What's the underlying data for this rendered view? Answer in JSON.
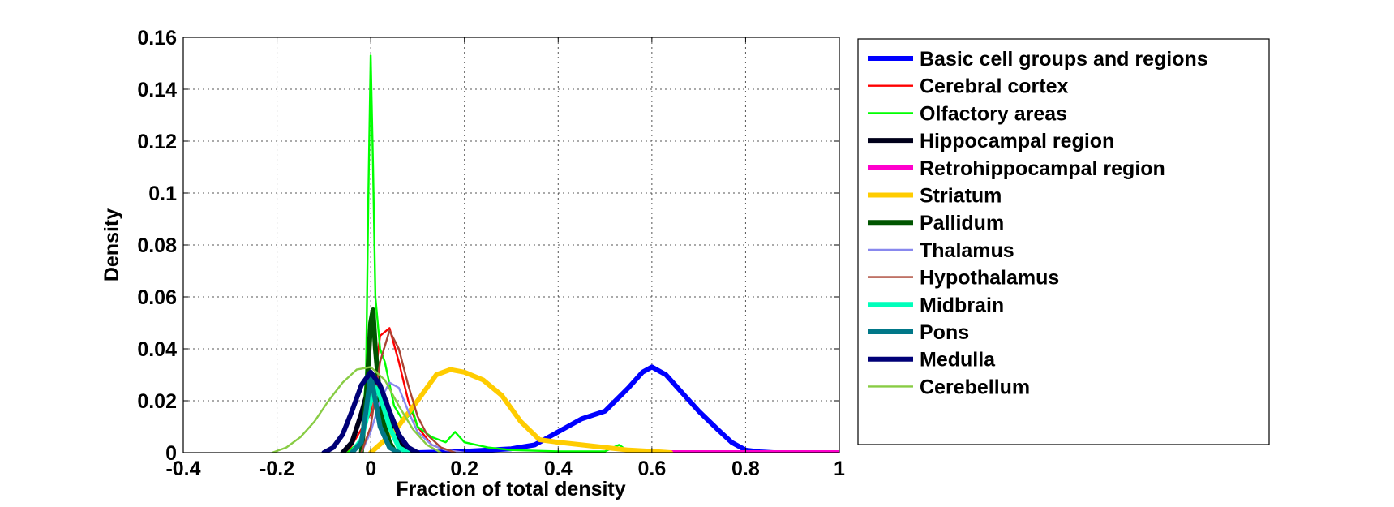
{
  "chart_data": {
    "type": "line",
    "title": "",
    "xlabel": "Fraction of total density",
    "ylabel": "Density",
    "xlim": [
      -0.4,
      1
    ],
    "ylim": [
      0,
      0.16
    ],
    "x_ticks": [
      "-0.4",
      "-0.2",
      "0",
      "0.2",
      "0.4",
      "0.6",
      "0.8",
      "1"
    ],
    "y_ticks": [
      "0",
      "0.02",
      "0.04",
      "0.06",
      "0.08",
      "0.1",
      "0.12",
      "0.14",
      "0.16"
    ],
    "grid": true,
    "legend_position": "outside-right",
    "series": [
      {
        "name": "Basic cell groups and regions",
        "color": "#0000ff",
        "width": "thick",
        "x": [
          0.1,
          0.2,
          0.3,
          0.35,
          0.4,
          0.45,
          0.5,
          0.55,
          0.58,
          0.6,
          0.63,
          0.66,
          0.7,
          0.74,
          0.77,
          0.8,
          0.83,
          0.86
        ],
        "y": [
          0.0,
          0.0005,
          0.0015,
          0.003,
          0.008,
          0.013,
          0.016,
          0.025,
          0.031,
          0.033,
          0.03,
          0.024,
          0.016,
          0.009,
          0.004,
          0.001,
          0.0003,
          0.0
        ]
      },
      {
        "name": "Cerebral cortex",
        "color": "#ff0000",
        "width": "thin",
        "x": [
          -0.05,
          0.0,
          0.02,
          0.04,
          0.06,
          0.08,
          0.1,
          0.13,
          0.16,
          0.2
        ],
        "y": [
          0.0,
          0.015,
          0.045,
          0.048,
          0.035,
          0.02,
          0.01,
          0.003,
          0.001,
          0.0
        ]
      },
      {
        "name": "Olfactory areas",
        "color": "#00ff00",
        "width": "thin",
        "x": [
          -0.05,
          -0.02,
          -0.01,
          -0.005,
          0.0,
          0.005,
          0.01,
          0.02,
          0.03,
          0.05,
          0.07,
          0.09,
          0.1,
          0.13,
          0.16,
          0.18,
          0.2,
          0.25,
          0.3,
          0.4,
          0.5,
          0.53,
          0.55,
          0.6
        ],
        "y": [
          0.0,
          0.005,
          0.03,
          0.1,
          0.153,
          0.11,
          0.06,
          0.04,
          0.035,
          0.018,
          0.012,
          0.016,
          0.01,
          0.006,
          0.004,
          0.008,
          0.004,
          0.002,
          0.001,
          0.0005,
          0.0005,
          0.003,
          0.0005,
          0.0
        ]
      },
      {
        "name": "Hippocampal region",
        "color": "#00001a",
        "width": "thick",
        "x": [
          -0.06,
          -0.04,
          -0.02,
          0.0,
          0.02,
          0.04,
          0.06,
          0.08,
          0.1
        ],
        "y": [
          0.0,
          0.004,
          0.015,
          0.028,
          0.024,
          0.012,
          0.004,
          0.001,
          0.0
        ]
      },
      {
        "name": "Retrohippocampal region",
        "color": "#ff00cc",
        "width": "thick",
        "x": [
          0.6,
          0.7,
          0.8,
          0.9,
          1.0
        ],
        "y": [
          0.0,
          0.0,
          0.0,
          0.0,
          0.0
        ]
      },
      {
        "name": "Striatum",
        "color": "#ffcc00",
        "width": "thick",
        "x": [
          0.0,
          0.05,
          0.1,
          0.14,
          0.17,
          0.2,
          0.24,
          0.28,
          0.32,
          0.36,
          0.4,
          0.45,
          0.5,
          0.55,
          0.6,
          0.64
        ],
        "y": [
          0.0,
          0.008,
          0.02,
          0.03,
          0.032,
          0.031,
          0.028,
          0.022,
          0.012,
          0.005,
          0.004,
          0.003,
          0.002,
          0.001,
          0.0005,
          0.0
        ]
      },
      {
        "name": "Pallidum",
        "color": "#005500",
        "width": "thick",
        "x": [
          -0.02,
          -0.01,
          0.0,
          0.005,
          0.01,
          0.02,
          0.03,
          0.04,
          0.05,
          0.06
        ],
        "y": [
          0.0,
          0.02,
          0.05,
          0.055,
          0.04,
          0.02,
          0.01,
          0.004,
          0.001,
          0.0
        ]
      },
      {
        "name": "Thalamus",
        "color": "#8888ee",
        "width": "thin",
        "x": [
          -0.02,
          0.0,
          0.02,
          0.04,
          0.06,
          0.08,
          0.1,
          0.13,
          0.16,
          0.2
        ],
        "y": [
          0.0,
          0.008,
          0.02,
          0.027,
          0.025,
          0.016,
          0.008,
          0.003,
          0.001,
          0.0
        ]
      },
      {
        "name": "Hypothalamus",
        "color": "#aa4433",
        "width": "thin",
        "x": [
          -0.02,
          0.0,
          0.02,
          0.04,
          0.06,
          0.08,
          0.1,
          0.12,
          0.15,
          0.18
        ],
        "y": [
          0.0,
          0.01,
          0.035,
          0.047,
          0.04,
          0.026,
          0.014,
          0.007,
          0.002,
          0.0
        ]
      },
      {
        "name": "Midbrain",
        "color": "#00ffbb",
        "width": "thick",
        "x": [
          -0.04,
          -0.02,
          0.0,
          0.01,
          0.02,
          0.04,
          0.06,
          0.08
        ],
        "y": [
          0.0,
          0.005,
          0.02,
          0.025,
          0.022,
          0.01,
          0.002,
          0.0
        ]
      },
      {
        "name": "Pons",
        "color": "#007788",
        "width": "thick",
        "x": [
          -0.04,
          -0.02,
          -0.01,
          0.0,
          0.01,
          0.02,
          0.04,
          0.06
        ],
        "y": [
          0.0,
          0.004,
          0.016,
          0.03,
          0.02,
          0.01,
          0.002,
          0.0
        ]
      },
      {
        "name": "Medulla",
        "color": "#000077",
        "width": "thick",
        "x": [
          -0.1,
          -0.08,
          -0.06,
          -0.04,
          -0.02,
          0.0,
          0.02,
          0.04,
          0.06,
          0.08,
          0.1
        ],
        "y": [
          0.0,
          0.002,
          0.007,
          0.016,
          0.026,
          0.031,
          0.026,
          0.016,
          0.007,
          0.002,
          0.0
        ]
      },
      {
        "name": "Cerebellum",
        "color": "#88cc44",
        "width": "thin",
        "x": [
          -0.21,
          -0.18,
          -0.15,
          -0.12,
          -0.09,
          -0.06,
          -0.03,
          0.0,
          0.03,
          0.06,
          0.09,
          0.12,
          0.15
        ],
        "y": [
          0.0,
          0.002,
          0.006,
          0.012,
          0.02,
          0.027,
          0.032,
          0.033,
          0.028,
          0.018,
          0.009,
          0.003,
          0.0
        ]
      }
    ]
  }
}
